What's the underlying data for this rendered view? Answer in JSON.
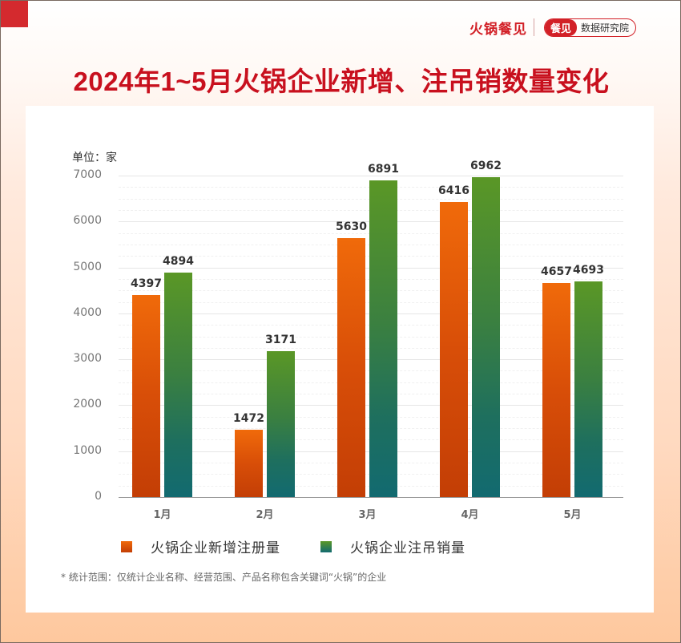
{
  "header": {
    "brand_name": "火锅餐见",
    "badge_primary": "餐见",
    "badge_secondary": "数据研究院"
  },
  "title": "2024年1~5月火锅企业新增、注吊销数量变化",
  "unit_label": "单位：家",
  "footnote": "* 统计范围：仅统计企业名称、经营范围、产品名称包含关键词“火锅”的企业",
  "colors": {
    "title": "#c8101e",
    "brand": "#d22027",
    "series_new": "#e85a0a",
    "series_cancel": "#3f8a3a"
  },
  "chart_data": {
    "type": "bar",
    "title": "2024年1~5月火锅企业新增、注吊销数量变化",
    "xlabel": "",
    "ylabel": "单位：家",
    "categories": [
      "1月",
      "2月",
      "3月",
      "4月",
      "5月"
    ],
    "series": [
      {
        "name": "火锅企业新增注册量",
        "values": [
          4397,
          1472,
          5630,
          6416,
          4657
        ]
      },
      {
        "name": "火锅企业注吊销量",
        "values": [
          4894,
          3171,
          6891,
          6962,
          4693
        ]
      }
    ],
    "ylim": [
      0,
      7000
    ],
    "yticks": [
      "0",
      "1000",
      "2000",
      "3000",
      "4000",
      "5000",
      "6000",
      "7000"
    ],
    "grid": true,
    "legend_position": "bottom",
    "data_labels": true
  }
}
